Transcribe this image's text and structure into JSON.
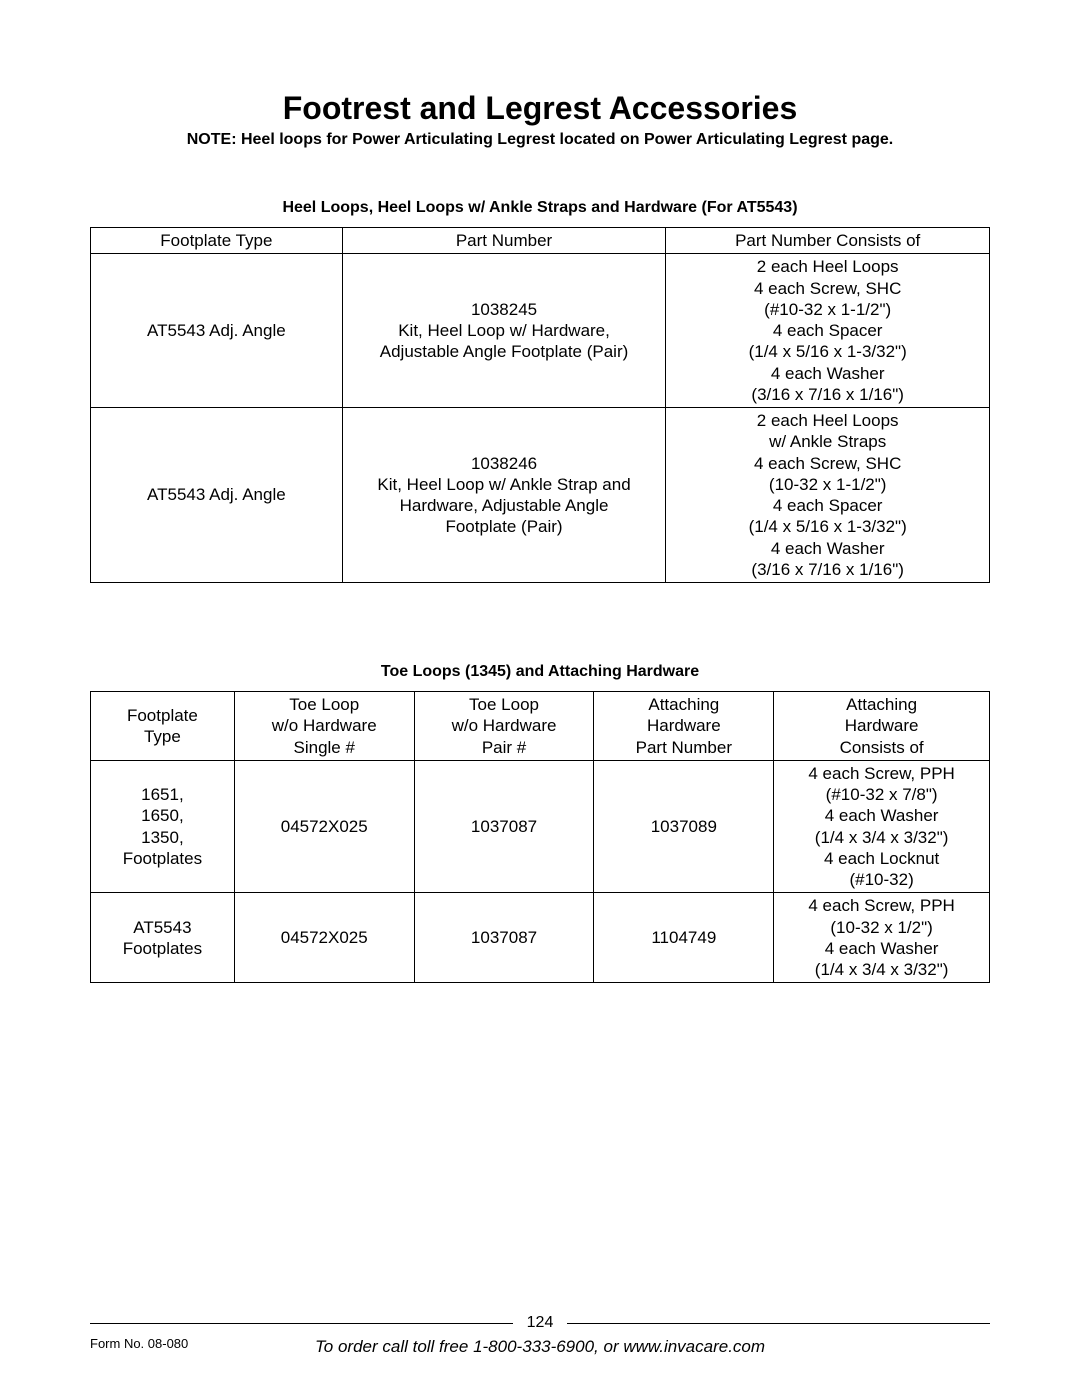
{
  "title": "Footrest and Legrest Accessories",
  "note": "NOTE: Heel loops for Power Articulating Legrest located on Power Articulating Legrest page.",
  "table1": {
    "heading": "Heel Loops, Heel Loops w/ Ankle Straps and Hardware (For AT5543)",
    "columns": [
      "Footplate Type",
      "Part Number",
      "Part Number Consists of"
    ],
    "rows": [
      {
        "c0": "AT5543 Adj. Angle",
        "c1": "1038245\nKit, Heel Loop w/ Hardware,\nAdjustable Angle Footplate (Pair)",
        "c2": "2 each Heel Loops\n4 each Screw, SHC\n(#10-32 x 1-1/2\")\n4 each Spacer\n(1/4 x 5/16 x 1-3/32\")\n4 each Washer\n(3/16 x 7/16 x 1/16\")"
      },
      {
        "c0": "AT5543 Adj. Angle",
        "c1": "1038246\nKit, Heel Loop w/ Ankle Strap and\nHardware, Adjustable Angle\nFootplate (Pair)",
        "c2": "2 each Heel Loops\nw/ Ankle Straps\n4 each Screw, SHC\n(10-32 x 1-1/2\")\n4 each Spacer\n(1/4 x 5/16 x 1-3/32\")\n4 each Washer\n(3/16 x 7/16 x 1/16\")"
      }
    ]
  },
  "table2": {
    "heading": "Toe Loops (1345) and Attaching Hardware",
    "columns": [
      "Footplate\nType",
      "Toe Loop\nw/o Hardware\nSingle #",
      "Toe Loop\nw/o Hardware\nPair #",
      "Attaching\nHardware\nPart Number",
      "Attaching\nHardware\nConsists of"
    ],
    "rows": [
      {
        "c0": "1651,\n1650,\n1350,\nFootplates",
        "c1": "04572X025",
        "c2": "1037087",
        "c3": "1037089",
        "c4": "4 each Screw, PPH\n(#10-32 x 7/8\")\n4 each Washer\n(1/4 x 3/4 x 3/32\")\n4 each Locknut\n(#10-32)"
      },
      {
        "c0": "AT5543\nFootplates",
        "c1": "04572X025",
        "c2": "1037087",
        "c3": "1104749",
        "c4": "4 each Screw, PPH\n(10-32 x 1/2\")\n4 each Washer\n(1/4 x 3/4 x 3/32\")"
      }
    ]
  },
  "footer": {
    "page_number": "124",
    "form_no": "Form No.  08-080",
    "order_line": "To order call toll free 1-800-333-6900, or www.invacare.com"
  }
}
